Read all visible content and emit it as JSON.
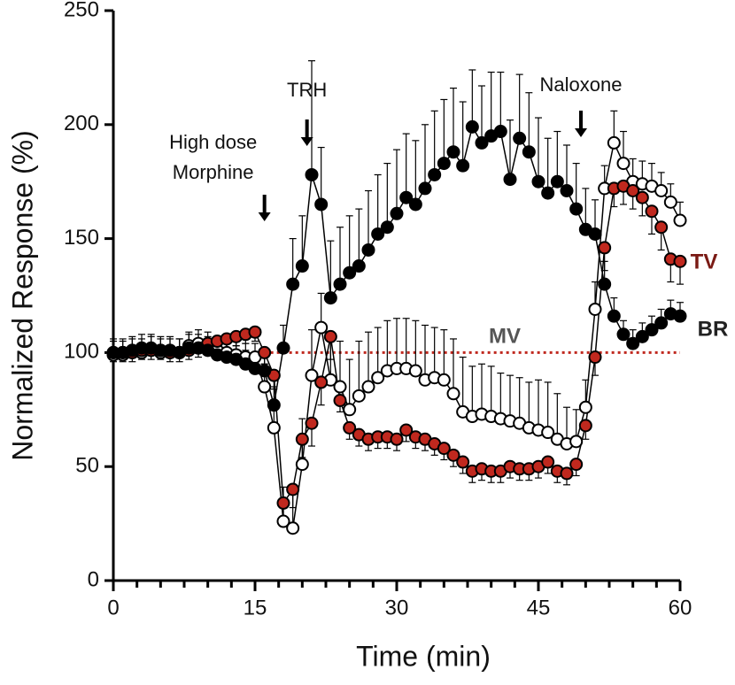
{
  "chart_data": {
    "type": "line",
    "xlabel": "Time (min)",
    "ylabel": "Normalized Response (%)",
    "xlim": [
      0,
      60
    ],
    "ylim": [
      0,
      250
    ],
    "xticks": [
      0,
      15,
      30,
      45,
      60
    ],
    "xminorticks": [
      2.5,
      5,
      7.5,
      10,
      12.5,
      17.5,
      20,
      22.5,
      25,
      27.5,
      32.5,
      35,
      37.5,
      40,
      42.5,
      47.5,
      50,
      52.5,
      55,
      57.5
    ],
    "yticks": [
      0,
      50,
      100,
      150,
      200,
      250
    ],
    "x": [
      0,
      1,
      2,
      3,
      4,
      5,
      6,
      7,
      8,
      9,
      10,
      11,
      12,
      13,
      14,
      15,
      16,
      17,
      18,
      19,
      20,
      21,
      22,
      23,
      24,
      25,
      26,
      27,
      28,
      29,
      30,
      31,
      32,
      33,
      34,
      35,
      36,
      37,
      38,
      39,
      40,
      41,
      42,
      43,
      44,
      45,
      46,
      47,
      48,
      49,
      50,
      51,
      52,
      53,
      54,
      55,
      56,
      57,
      58,
      59,
      60
    ],
    "series": [
      {
        "name": "BR",
        "color": "#000000",
        "error_direction": "up",
        "values": [
          100,
          100,
          101,
          102,
          102,
          101,
          101,
          100,
          102,
          102,
          101,
          99,
          98,
          97,
          95,
          93,
          92,
          77,
          102,
          130,
          138,
          178,
          165,
          124,
          130,
          135,
          138,
          145,
          152,
          155,
          161,
          168,
          165,
          172,
          178,
          183,
          188,
          182,
          199,
          192,
          195,
          197,
          176,
          194,
          188,
          175,
          170,
          175,
          171,
          163,
          154,
          152,
          130,
          116,
          108,
          104,
          107,
          110,
          113,
          117,
          116
        ],
        "errors": [
          6,
          6,
          6,
          6,
          6,
          6,
          6,
          6,
          6,
          6,
          6,
          6,
          6,
          6,
          6,
          6,
          6,
          8,
          10,
          20,
          22,
          50,
          25,
          25,
          25,
          25,
          25,
          26,
          26,
          28,
          28,
          28,
          28,
          28,
          28,
          28,
          28,
          28,
          25,
          25,
          28,
          26,
          26,
          28,
          26,
          28,
          24,
          22,
          20,
          20,
          18,
          15,
          10,
          8,
          6,
          6,
          6,
          6,
          6,
          6,
          6
        ]
      },
      {
        "name": "TV",
        "color": "#c0281e",
        "error_direction": "down",
        "values": [
          100,
          100,
          100,
          101,
          101,
          101,
          100,
          100,
          101,
          102,
          104,
          105,
          106,
          107,
          108,
          109,
          100,
          90,
          34,
          40,
          62,
          69,
          87,
          107,
          79,
          67,
          64,
          62,
          63,
          63,
          62,
          66,
          63,
          62,
          60,
          58,
          55,
          52,
          48,
          49,
          48,
          48,
          50,
          49,
          49,
          50,
          52,
          48,
          47,
          51,
          68,
          98,
          146,
          172,
          173,
          171,
          168,
          162,
          155,
          141,
          140
        ],
        "errors": [
          4,
          4,
          4,
          4,
          4,
          4,
          4,
          4,
          4,
          4,
          4,
          4,
          4,
          4,
          4,
          4,
          5,
          6,
          8,
          8,
          8,
          10,
          10,
          10,
          5,
          5,
          5,
          5,
          5,
          5,
          5,
          5,
          5,
          5,
          5,
          5,
          5,
          5,
          5,
          5,
          5,
          5,
          5,
          5,
          5,
          5,
          5,
          5,
          5,
          5,
          6,
          8,
          10,
          8,
          8,
          8,
          8,
          10,
          10,
          10,
          10
        ]
      },
      {
        "name": "MV",
        "color": "#ffffff",
        "error_direction": "up",
        "values": [
          99,
          99,
          100,
          100,
          101,
          100,
          100,
          100,
          103,
          104,
          103,
          101,
          100,
          99,
          98,
          98,
          85,
          67,
          26,
          23,
          51,
          90,
          111,
          88,
          85,
          75,
          81,
          85,
          89,
          92,
          93,
          93,
          92,
          88,
          89,
          88,
          82,
          74,
          72,
          73,
          72,
          71,
          70,
          69,
          67,
          66,
          65,
          62,
          60,
          61,
          76,
          119,
          172,
          192,
          183,
          175,
          174,
          173,
          171,
          166,
          158
        ],
        "errors": [
          6,
          6,
          6,
          6,
          6,
          6,
          6,
          6,
          6,
          6,
          6,
          6,
          6,
          6,
          6,
          6,
          10,
          12,
          15,
          18,
          20,
          20,
          15,
          20,
          20,
          22,
          24,
          24,
          22,
          22,
          22,
          22,
          22,
          24,
          22,
          22,
          24,
          24,
          22,
          22,
          22,
          20,
          20,
          20,
          20,
          22,
          22,
          20,
          16,
          14,
          12,
          12,
          10,
          14,
          14,
          10,
          10,
          10,
          8,
          8,
          8
        ]
      }
    ],
    "reference_line": {
      "y": 100,
      "x": [
        16,
        60
      ],
      "color": "#c0281e"
    },
    "annotations": [
      {
        "lines": [
          "High dose",
          "Morphine"
        ],
        "x": 16
      },
      {
        "lines": [
          "TRH"
        ],
        "x": 20.5
      },
      {
        "lines": [
          "Naloxone"
        ],
        "x": 49.5
      }
    ]
  }
}
